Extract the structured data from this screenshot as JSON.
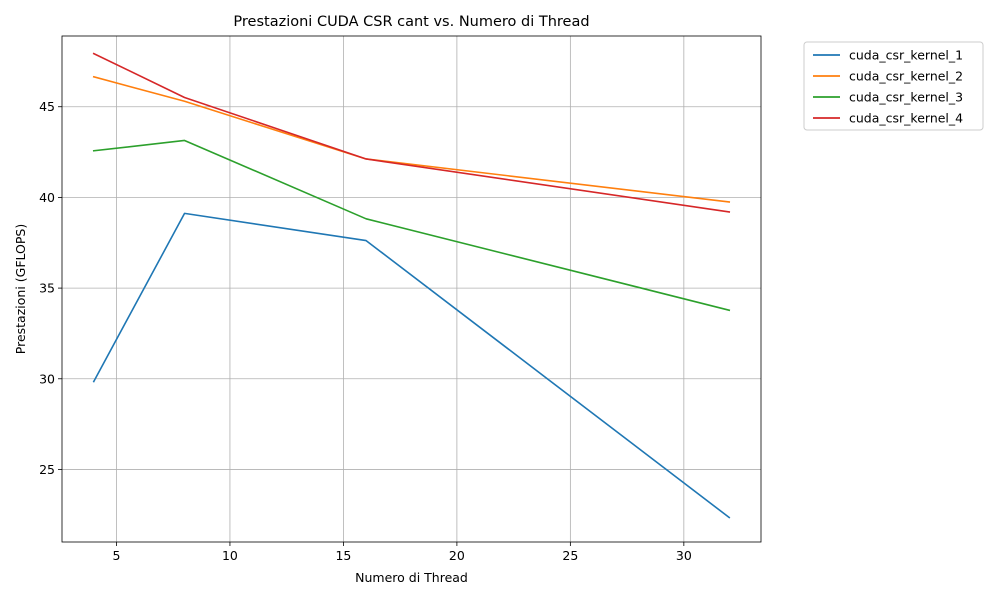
{
  "chart_data": {
    "type": "line",
    "title": "Prestazioni CUDA CSR cant vs. Numero di Thread",
    "xlabel": "Numero di Thread",
    "ylabel": "Prestazioni (GFLOPS)",
    "xlim": [
      2.6,
      33.4
    ],
    "ylim": [
      21.0,
      48.9
    ],
    "xticks": [
      5,
      10,
      15,
      20,
      25,
      30
    ],
    "yticks": [
      25,
      30,
      35,
      40,
      45
    ],
    "grid": true,
    "legend_position": "outside-top-right",
    "x": [
      4,
      8,
      16,
      32
    ],
    "series": [
      {
        "name": "cuda_csr_kernel_1",
        "color": "#1f77b4",
        "values": [
          29.85,
          39.12,
          37.62,
          22.35
        ]
      },
      {
        "name": "cuda_csr_kernel_2",
        "color": "#ff7f0e",
        "values": [
          46.65,
          45.3,
          42.12,
          39.75
        ]
      },
      {
        "name": "cuda_csr_kernel_3",
        "color": "#2ca02c",
        "values": [
          42.57,
          43.14,
          38.82,
          33.78
        ]
      },
      {
        "name": "cuda_csr_kernel_4",
        "color": "#d62728",
        "values": [
          47.93,
          45.51,
          42.12,
          39.2
        ]
      }
    ]
  }
}
